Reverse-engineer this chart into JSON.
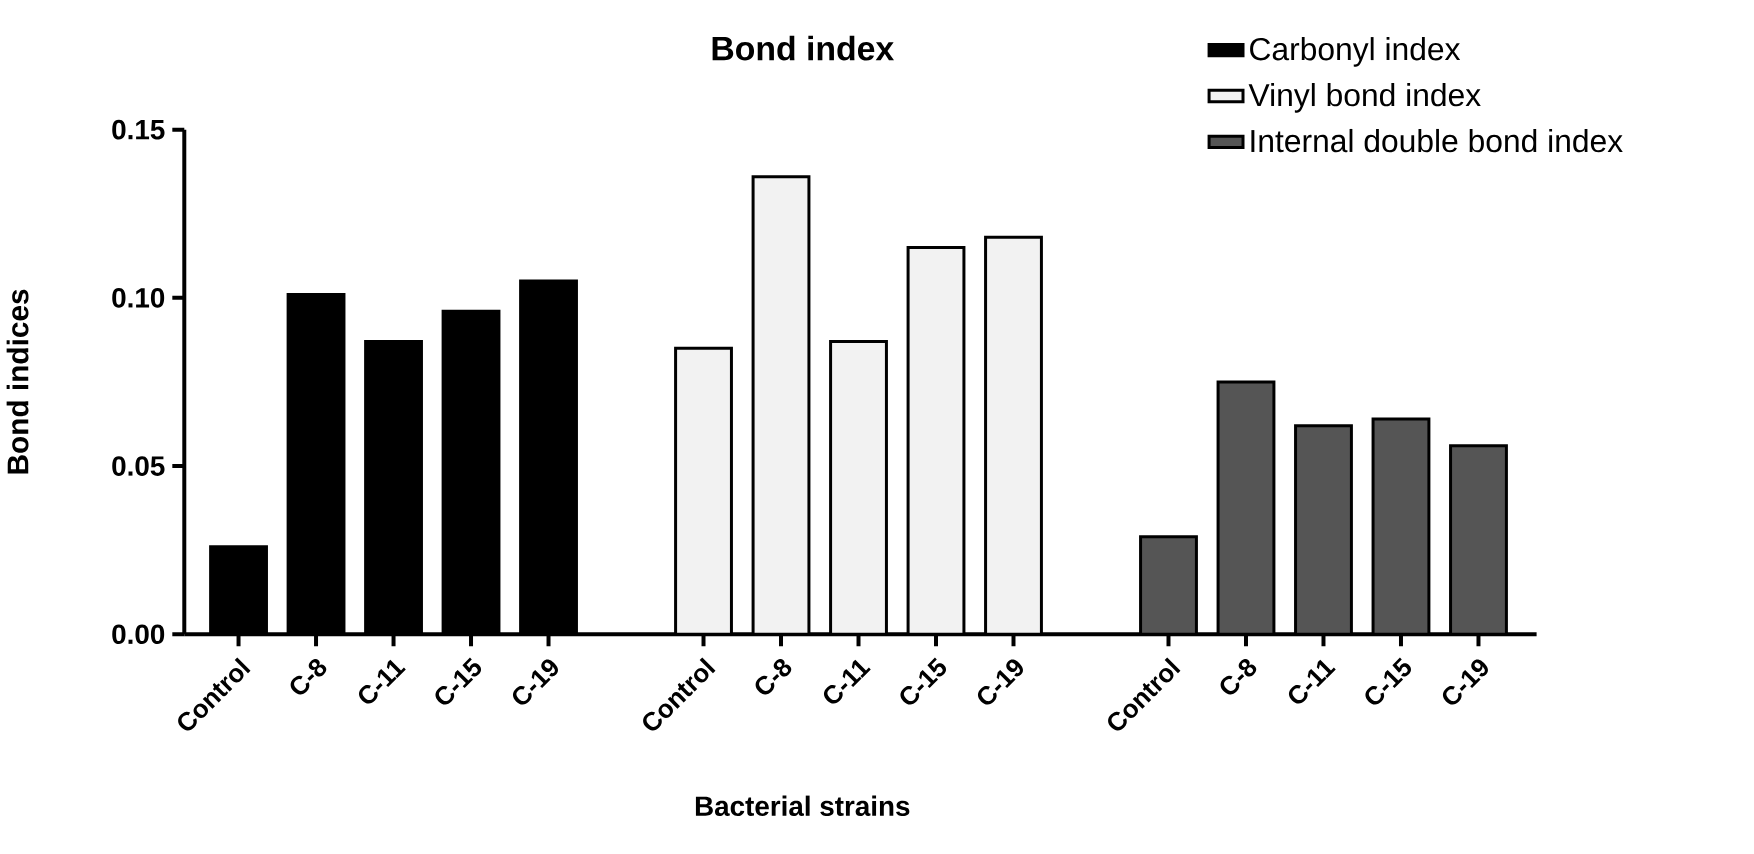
{
  "chart_data": {
    "type": "bar",
    "title": "Bond index",
    "xlabel": "Bacterial strains",
    "ylabel": "Bond indices",
    "categories": [
      "Control",
      "C-8",
      "C-11",
      "C-15",
      "C-19",
      null,
      "Control",
      "C-8",
      "C-11",
      "C-15",
      "C-19",
      null,
      "Control",
      "C-8",
      "C-11",
      "C-15",
      "C-19"
    ],
    "series": [
      {
        "name": "Carbonyl index",
        "color": "#000000",
        "values": [
          0.026,
          0.101,
          0.087,
          0.096,
          0.105,
          null,
          null,
          null,
          null,
          null,
          null,
          null,
          null,
          null,
          null,
          null,
          null
        ]
      },
      {
        "name": "Vinyl bond index",
        "color": "#f2f2f2",
        "values": [
          null,
          null,
          null,
          null,
          null,
          null,
          0.085,
          0.136,
          0.087,
          0.115,
          0.118,
          null,
          null,
          null,
          null,
          null,
          null
        ]
      },
      {
        "name": "Internal double bond index",
        "color": "#555555",
        "values": [
          null,
          null,
          null,
          null,
          null,
          null,
          null,
          null,
          null,
          null,
          null,
          null,
          0.029,
          0.075,
          0.062,
          0.064,
          0.056
        ]
      }
    ],
    "ylim": [
      0,
      0.15
    ],
    "yticks": [
      {
        "value": 0,
        "label": "0.00"
      },
      {
        "value": 0.05,
        "label": "0.05"
      },
      {
        "value": 0.1,
        "label": "0.10"
      },
      {
        "value": 0.15,
        "label": "0.15"
      }
    ],
    "legend": "top right",
    "grid": false
  }
}
